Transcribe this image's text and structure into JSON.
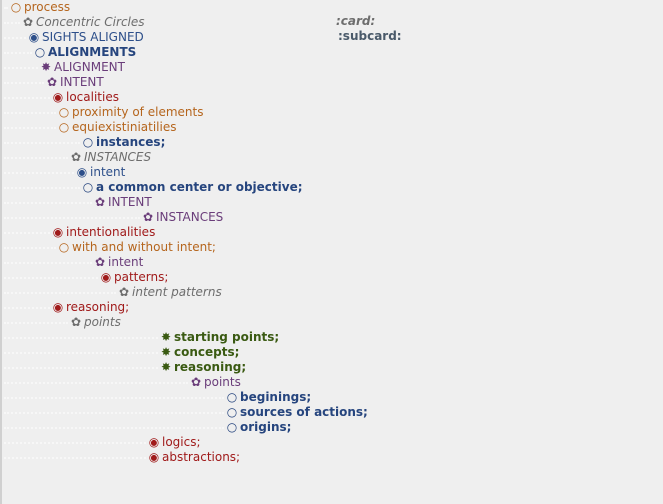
{
  "card": {
    "card_label": ":card:",
    "subcard_label": ":subcard:"
  },
  "outline": [
    {
      "label": "process",
      "bullet": "○",
      "bullet_name": "hollow-circle-bullet-icon",
      "color": "c-orange",
      "style": ""
    },
    {
      "label": "Concentric Circles",
      "bullet": "✿",
      "bullet_name": "flower-bullet-icon",
      "color": "c-gray",
      "style": "ital"
    },
    {
      "label": "SIGHTS ALIGNED",
      "bullet": "◉",
      "bullet_name": "filled-circle-bullet-icon",
      "color": "c-blue",
      "style": ""
    },
    {
      "label": "ALIGNMENTS",
      "bullet": "○",
      "bullet_name": "hollow-circle-bullet-icon",
      "color": "c-navy",
      "style": "bold"
    },
    {
      "label": "ALIGNMENT",
      "bullet": "✸",
      "bullet_name": "star-bullet-icon",
      "color": "c-purple",
      "style": ""
    },
    {
      "label": "INTENT",
      "bullet": "✿",
      "bullet_name": "flower-bullet-icon",
      "color": "c-purple",
      "style": ""
    },
    {
      "label": "localities",
      "bullet": "◉",
      "bullet_name": "filled-circle-bullet-icon",
      "color": "c-red",
      "style": ""
    },
    {
      "label": "proximity of elements",
      "bullet": "○",
      "bullet_name": "hollow-circle-bullet-icon",
      "color": "c-orange",
      "style": ""
    },
    {
      "label": "equiexistiniatilies",
      "bullet": "○",
      "bullet_name": "hollow-circle-bullet-icon",
      "color": "c-orange",
      "style": ""
    },
    {
      "label": "instances;",
      "bullet": "○",
      "bullet_name": "hollow-circle-bullet-icon",
      "color": "c-navy",
      "style": "bold"
    },
    {
      "label": "INSTANCES",
      "bullet": "✿",
      "bullet_name": "flower-bullet-icon",
      "color": "c-gray",
      "style": "ital"
    },
    {
      "label": "intent",
      "bullet": "◉",
      "bullet_name": "filled-circle-bullet-icon",
      "color": "c-blue",
      "style": ""
    },
    {
      "label": "a common center or objective;",
      "bullet": "○",
      "bullet_name": "hollow-circle-bullet-icon",
      "color": "c-navy",
      "style": "bold"
    },
    {
      "label": "INTENT",
      "bullet": "✿",
      "bullet_name": "flower-bullet-icon",
      "color": "c-purple",
      "style": ""
    },
    {
      "label": "INSTANCES",
      "bullet": "✿",
      "bullet_name": "flower-bullet-icon",
      "color": "c-purple",
      "style": ""
    },
    {
      "label": "intentionalities",
      "bullet": "◉",
      "bullet_name": "filled-circle-bullet-icon",
      "color": "c-red",
      "style": ""
    },
    {
      "label": "with and without intent;",
      "bullet": "○",
      "bullet_name": "hollow-circle-bullet-icon",
      "color": "c-orange",
      "style": ""
    },
    {
      "label": "intent",
      "bullet": "✿",
      "bullet_name": "flower-bullet-icon",
      "color": "c-purple",
      "style": ""
    },
    {
      "label": "patterns;",
      "bullet": "◉",
      "bullet_name": "filled-circle-bullet-icon",
      "color": "c-red",
      "style": ""
    },
    {
      "label": "intent patterns",
      "bullet": "✿",
      "bullet_name": "flower-bullet-icon",
      "color": "c-gray",
      "style": "ital"
    },
    {
      "label": "reasoning;",
      "bullet": "◉",
      "bullet_name": "filled-circle-bullet-icon",
      "color": "c-red",
      "style": ""
    },
    {
      "label": "points",
      "bullet": "✿",
      "bullet_name": "flower-bullet-icon",
      "color": "c-gray",
      "style": "ital"
    },
    {
      "label": "starting points;",
      "bullet": "✸",
      "bullet_name": "star-bullet-icon",
      "color": "c-green",
      "style": "bold"
    },
    {
      "label": "concepts;",
      "bullet": "✸",
      "bullet_name": "star-bullet-icon",
      "color": "c-green",
      "style": "bold"
    },
    {
      "label": "reasoning;",
      "bullet": "✸",
      "bullet_name": "star-bullet-icon",
      "color": "c-green",
      "style": "bold"
    },
    {
      "label": "points",
      "bullet": "✿",
      "bullet_name": "flower-bullet-icon",
      "color": "c-purple",
      "style": ""
    },
    {
      "label": "beginings;",
      "bullet": "○",
      "bullet_name": "hollow-circle-bullet-icon",
      "color": "c-navy",
      "style": "bold"
    },
    {
      "label": "sources of actions;",
      "bullet": "○",
      "bullet_name": "hollow-circle-bullet-icon",
      "color": "c-navy",
      "style": "bold"
    },
    {
      "label": "origins;",
      "bullet": "○",
      "bullet_name": "hollow-circle-bullet-icon",
      "color": "c-navy",
      "style": "bold"
    },
    {
      "label": "logics;",
      "bullet": "◉",
      "bullet_name": "filled-circle-bullet-icon",
      "color": "c-red",
      "style": ""
    },
    {
      "label": "abstractions;",
      "bullet": "◉",
      "bullet_name": "filled-circle-bullet-icon",
      "color": "c-red",
      "style": ""
    }
  ]
}
